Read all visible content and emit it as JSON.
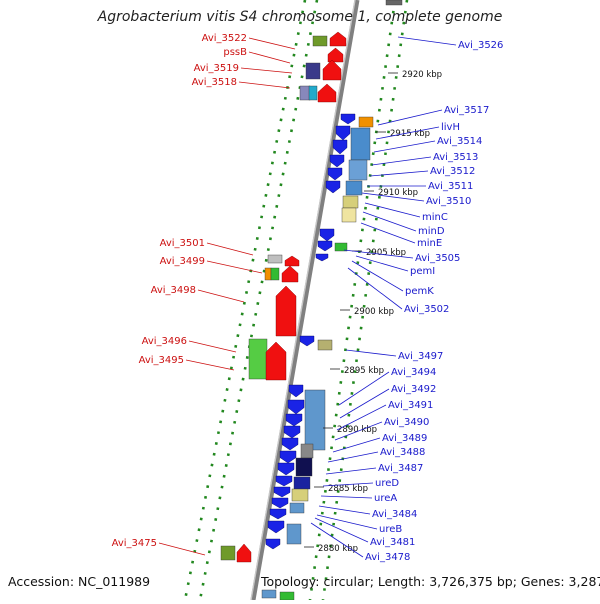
{
  "title": "Agrobacterium vitis S4 chromosome 1, complete genome",
  "accession_text": "Accession: NC_011989",
  "topology_text": "Topology: circular; Length: 3,726,375 bp; Genes: 3,287",
  "colors": {
    "forward_gene": "#f01010",
    "reverse_gene": "#1a23e6",
    "left_label": "#cc1111",
    "right_label": "#1a1acc",
    "backbone": "#808080",
    "tick_ring": "#22881f"
  },
  "bp_ticks": [
    "2920 kbp",
    "2915 kbp",
    "2910 kbp",
    "2905 kbp",
    "2900 kbp",
    "2895 kbp",
    "2890 kbp",
    "2885 kbp",
    "2880 kbp"
  ],
  "left_labels": [
    "Avi_3522",
    "pssB",
    "Avi_3519",
    "Avi_3518",
    "Avi_3501",
    "Avi_3499",
    "Avi_3498",
    "Avi_3496",
    "Avi_3495",
    "Avi_3475"
  ],
  "right_labels": [
    "Avi_3526",
    "Avi_3517",
    "livH",
    "Avi_3514",
    "Avi_3513",
    "Avi_3512",
    "Avi_3511",
    "Avi_3510",
    "minC",
    "minD",
    "minE",
    "Avi_3505",
    "pemI",
    "pemK",
    "Avi_3502",
    "Avi_3497",
    "Avi_3494",
    "Avi_3492",
    "Avi_3491",
    "Avi_3490",
    "Avi_3489",
    "Avi_3488",
    "Avi_3487",
    "ureD",
    "ureA",
    "Avi_3484",
    "ureB",
    "Avi_3481",
    "Avi_3478"
  ]
}
